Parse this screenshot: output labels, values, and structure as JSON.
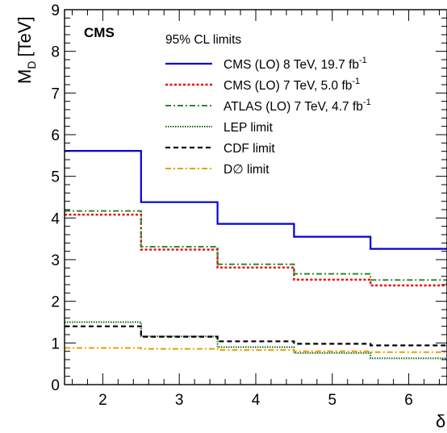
{
  "chart_data": {
    "type": "line",
    "experiment_label": "CMS",
    "legend_title": "95% CL limits",
    "ylabel_main": "M",
    "ylabel_sub": "D",
    "ylabel_unit": "[TeV]",
    "xlabel": "δ",
    "xlim": [
      1.5,
      6.5
    ],
    "ylim": [
      0,
      9
    ],
    "xticks": [
      "2",
      "3",
      "4",
      "5",
      "6"
    ],
    "yticks": [
      "0",
      "1",
      "2",
      "3",
      "4",
      "5",
      "6",
      "7",
      "8",
      "9"
    ],
    "legend_position": "top-right",
    "grid": false,
    "series": [
      {
        "name": "CMS (LO) 8 TeV, 19.7 fb",
        "name_sup": "-1",
        "color": "#0000dd",
        "style": "solid",
        "x": [
          2,
          3,
          4,
          5,
          6
        ],
        "values": [
          5.61,
          4.38,
          3.86,
          3.55,
          3.26
        ]
      },
      {
        "name": "CMS (LO) 7 TeV, 5.0 fb",
        "name_sup": "-1",
        "color": "#ee0000",
        "style": "dotted",
        "x": [
          2,
          3,
          4,
          5,
          6
        ],
        "values": [
          4.08,
          3.24,
          2.81,
          2.52,
          2.38
        ]
      },
      {
        "name": "ATLAS (LO) 7 TeV, 4.7 fb",
        "name_sup": "-1",
        "color": "#33882e",
        "style": "dashdot",
        "x": [
          2,
          3,
          4,
          5,
          6
        ],
        "values": [
          4.17,
          3.31,
          2.89,
          2.66,
          2.51
        ]
      },
      {
        "name": "LEP limit",
        "name_sup": "",
        "color": "#106610",
        "style": "finedot",
        "x": [
          2,
          3,
          4,
          5,
          6
        ],
        "values": [
          1.5,
          1.16,
          0.9,
          0.76,
          0.63
        ]
      },
      {
        "name": "CDF limit",
        "name_sup": "",
        "color": "#000000",
        "style": "dashed",
        "x": [
          2,
          3,
          4,
          5,
          6
        ],
        "values": [
          1.4,
          1.15,
          1.04,
          0.98,
          0.94
        ]
      },
      {
        "name": "D∅ limit",
        "name_sup": "",
        "color": "#e8a000",
        "style": "dashdot",
        "x": [
          2,
          3,
          4,
          5,
          6
        ],
        "values": [
          0.88,
          0.86,
          0.83,
          0.8,
          0.78
        ]
      }
    ]
  }
}
